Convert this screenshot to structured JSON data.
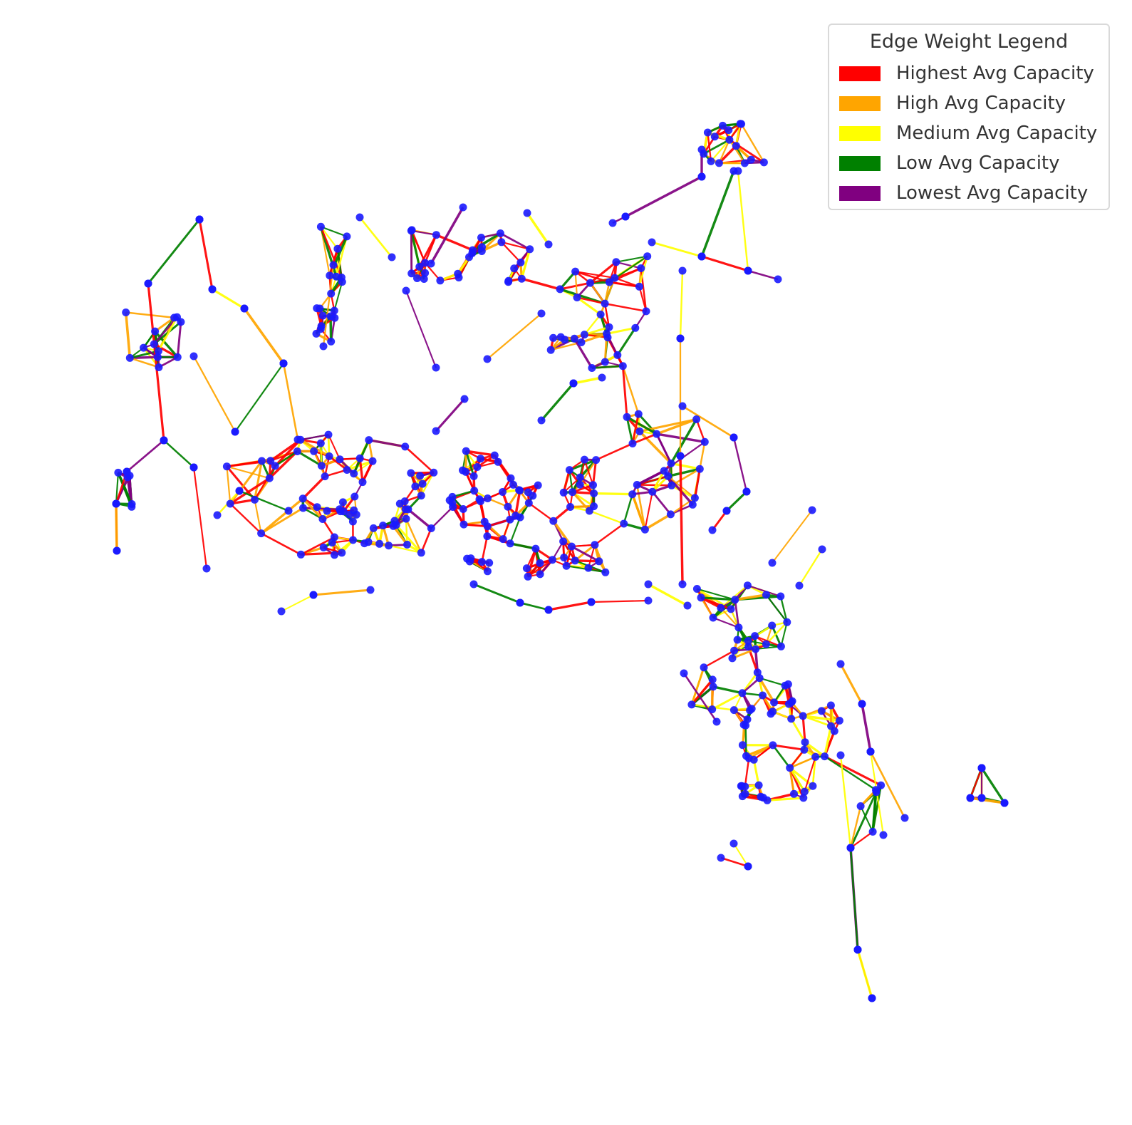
{
  "legend": {
    "title": "Edge Weight Legend",
    "items": [
      {
        "label": "Highest Avg Capacity",
        "color": "#ff0000"
      },
      {
        "label": "High Avg Capacity",
        "color": "#ffa500"
      },
      {
        "label": "Medium Avg Capacity",
        "color": "#ffff00"
      },
      {
        "label": "Low Avg Capacity",
        "color": "#008000"
      },
      {
        "label": "Lowest Avg Capacity",
        "color": "#800080"
      }
    ]
  },
  "node_color": "#1a1aff"
}
